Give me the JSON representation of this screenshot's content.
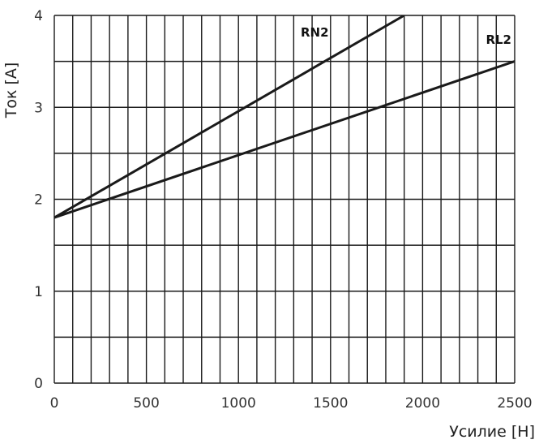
{
  "chart_data": {
    "type": "line",
    "xlabel": "Усилие [H]",
    "ylabel": "Ток  [A]",
    "xlim": [
      0,
      2500
    ],
    "ylim": [
      0,
      4
    ],
    "x_ticks": [
      0,
      500,
      1000,
      1500,
      2000,
      2500
    ],
    "y_ticks": [
      0,
      1,
      2,
      3,
      4
    ],
    "x_tick_labels": [
      "0",
      "500",
      "1000",
      "1500",
      "2000",
      "2500"
    ],
    "y_tick_labels": [
      "0",
      "1",
      "2",
      "3",
      "4"
    ],
    "grid": {
      "x_step": 100,
      "y_step": 0.5
    },
    "series": [
      {
        "name": "RN2",
        "x": [
          0,
          1900
        ],
        "y": [
          1.8,
          4.0
        ]
      },
      {
        "name": "RL2",
        "x": [
          0,
          2500
        ],
        "y": [
          1.8,
          3.5
        ]
      }
    ],
    "colors": {
      "line": "#1a1a1a",
      "grid": "#1a1a1a",
      "background": "#ffffff"
    }
  }
}
